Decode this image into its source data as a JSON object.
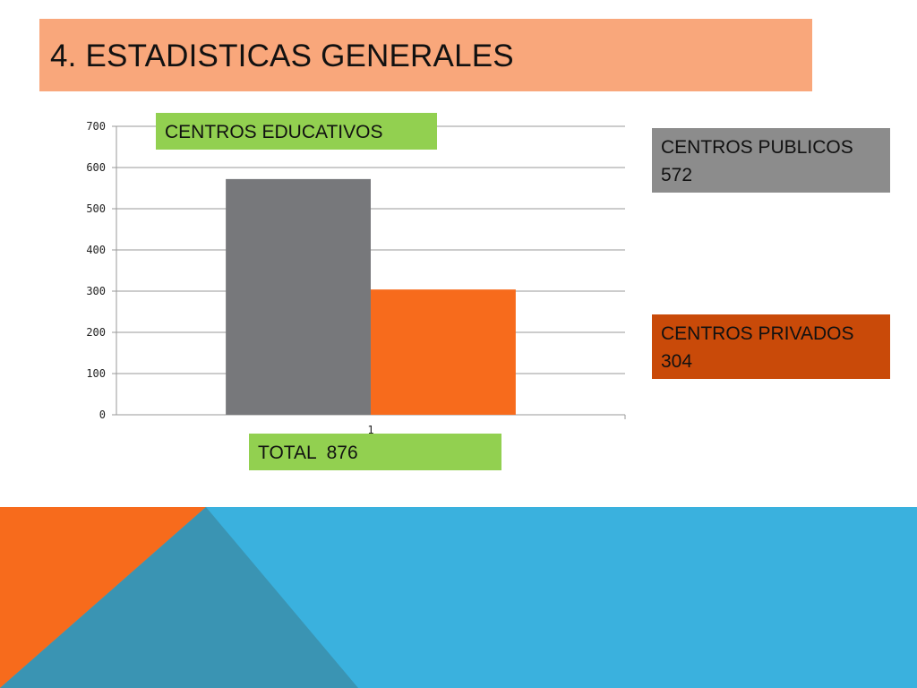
{
  "slide": {
    "title": "4. ESTADISTICAS GENERALES",
    "colors": {
      "title_bg": "#f9a77b",
      "label_green": "#92d050",
      "public_box": "#8c8c8c",
      "private_box": "#c94a09",
      "footer_blue": "#3ab1de",
      "footer_orange": "#f76b1c",
      "footer_teal": "#3a94b3"
    }
  },
  "labels": {
    "chart_title": "CENTROS EDUCATIVOS",
    "total": "TOTAL  876",
    "public_line1": "CENTROS PUBLICOS",
    "public_line2": "572",
    "private_line1": "CENTROS PRIVADOS",
    "private_line2": "304"
  },
  "chart_data": {
    "type": "bar",
    "title": "CENTROS EDUCATIVOS",
    "categories": [
      "1"
    ],
    "series": [
      {
        "values": [
          572
        ],
        "color": "#77787b"
      },
      {
        "values": [
          304
        ],
        "color": "#f76b1c"
      }
    ],
    "ylim": [
      0,
      700
    ],
    "yticks": [
      0,
      100,
      200,
      300,
      400,
      500,
      600,
      700
    ],
    "grid": true,
    "legend": "none"
  }
}
